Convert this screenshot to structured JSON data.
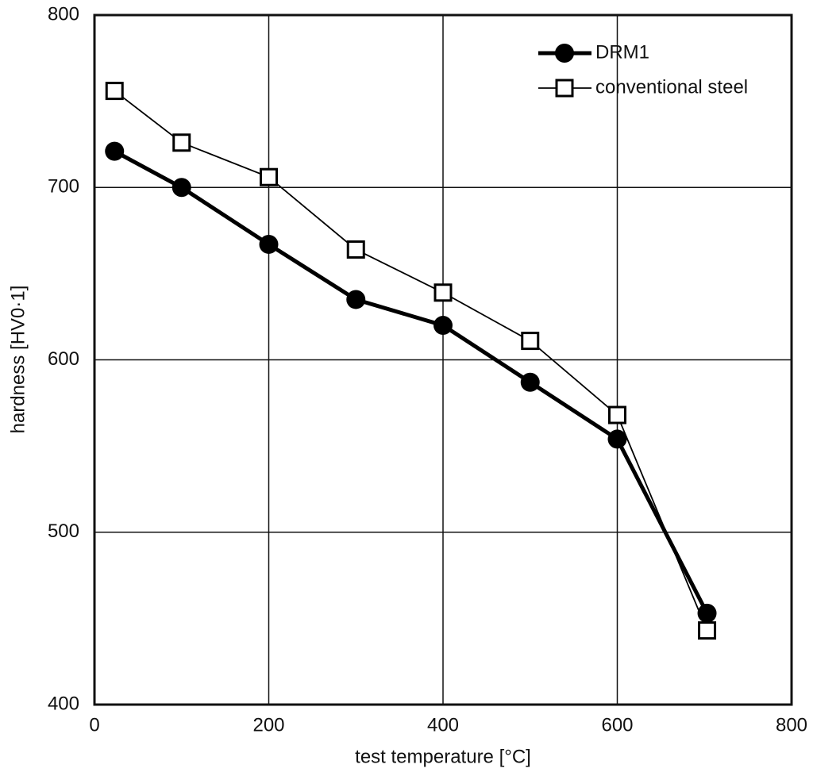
{
  "chart_data": {
    "type": "line",
    "x_label": "test temperature [°C]",
    "y_label": "hardness [HV0·1]",
    "xlim": [
      0,
      800
    ],
    "xticks": [
      0,
      200,
      400,
      600,
      800
    ],
    "ylim": [
      400,
      800
    ],
    "yticks": [
      400,
      500,
      600,
      700,
      800
    ],
    "grid": true,
    "legend": "upper-right",
    "series": [
      {
        "name": "DRM1",
        "color": "#000000",
        "marker": "circle",
        "x": [
          23,
          100,
          200,
          300,
          400,
          500,
          600,
          703
        ],
        "values": [
          721,
          700,
          667,
          635,
          620,
          587,
          554,
          453
        ]
      },
      {
        "name": "conventional steel",
        "color": "#000000",
        "marker": "square",
        "x": [
          23,
          100,
          200,
          300,
          400,
          500,
          600,
          703
        ],
        "values": [
          756,
          726,
          706,
          664,
          639,
          611,
          568,
          443
        ]
      }
    ]
  }
}
